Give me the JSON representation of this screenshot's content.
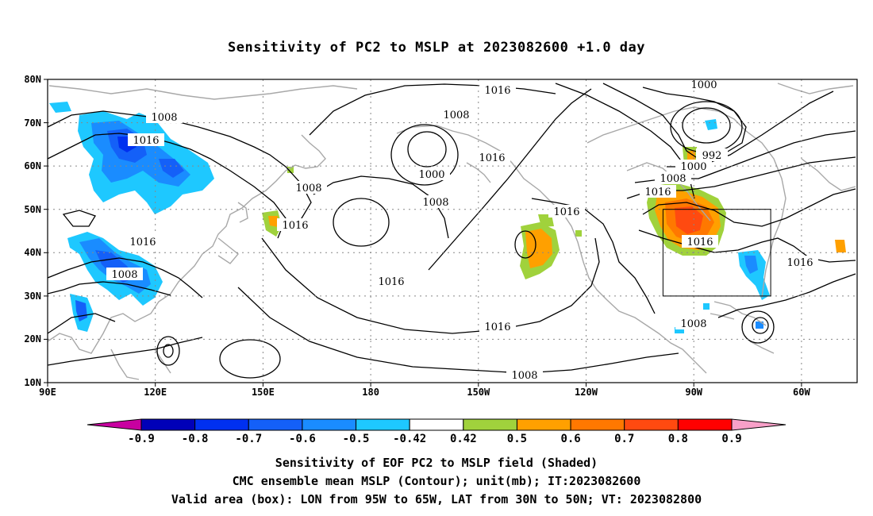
{
  "title": "Sensitivity of PC2 to MSLP at 2023082600 +1.0 day",
  "lat_labels": [
    "80N",
    "70N",
    "60N",
    "50N",
    "40N",
    "30N",
    "20N",
    "10N"
  ],
  "lon_labels": [
    "90E",
    "120E",
    "150E",
    "180",
    "150W",
    "120W",
    "90W",
    "60W"
  ],
  "contour_labels": [
    {
      "text": "1016"
    },
    {
      "text": "1000"
    },
    {
      "text": "1008"
    },
    {
      "text": "1016"
    },
    {
      "text": "1008"
    },
    {
      "text": "1016"
    },
    {
      "text": "1000"
    },
    {
      "text": "1016"
    },
    {
      "text": "1008"
    },
    {
      "text": "1008"
    },
    {
      "text": "1016"
    },
    {
      "text": "1016"
    },
    {
      "text": "992"
    },
    {
      "text": "1000"
    },
    {
      "text": "1008"
    },
    {
      "text": "1016"
    },
    {
      "text": "1016"
    },
    {
      "text": "1016"
    },
    {
      "text": "1008"
    },
    {
      "text": "1016"
    },
    {
      "text": "1016"
    },
    {
      "text": "1008"
    },
    {
      "text": "1008"
    }
  ],
  "colorbar": {
    "labels": [
      "-0.9",
      "-0.8",
      "-0.7",
      "-0.6",
      "-0.5",
      "-0.42",
      "0.42",
      "0.5",
      "0.6",
      "0.7",
      "0.8",
      "0.9"
    ],
    "colors": [
      "#0000b8",
      "#0030f0",
      "#1460f8",
      "#1a8cff",
      "#1ec8ff",
      "#ffffff",
      "#a0d23c",
      "#ffa000",
      "#ff7800",
      "#ff4a10",
      "#ff0000"
    ],
    "low_end_color": "#c800a0",
    "high_end_color": "#f8a0c8"
  },
  "captions": [
    "Sensitivity of EOF PC2 to MSLP field (Shaded)",
    "CMC ensemble mean MSLP (Contour); unit(mb); IT:2023082600",
    "Valid area (box): LON from 95W to 65W, LAT from 30N to 50N; VT: 2023082800"
  ]
}
